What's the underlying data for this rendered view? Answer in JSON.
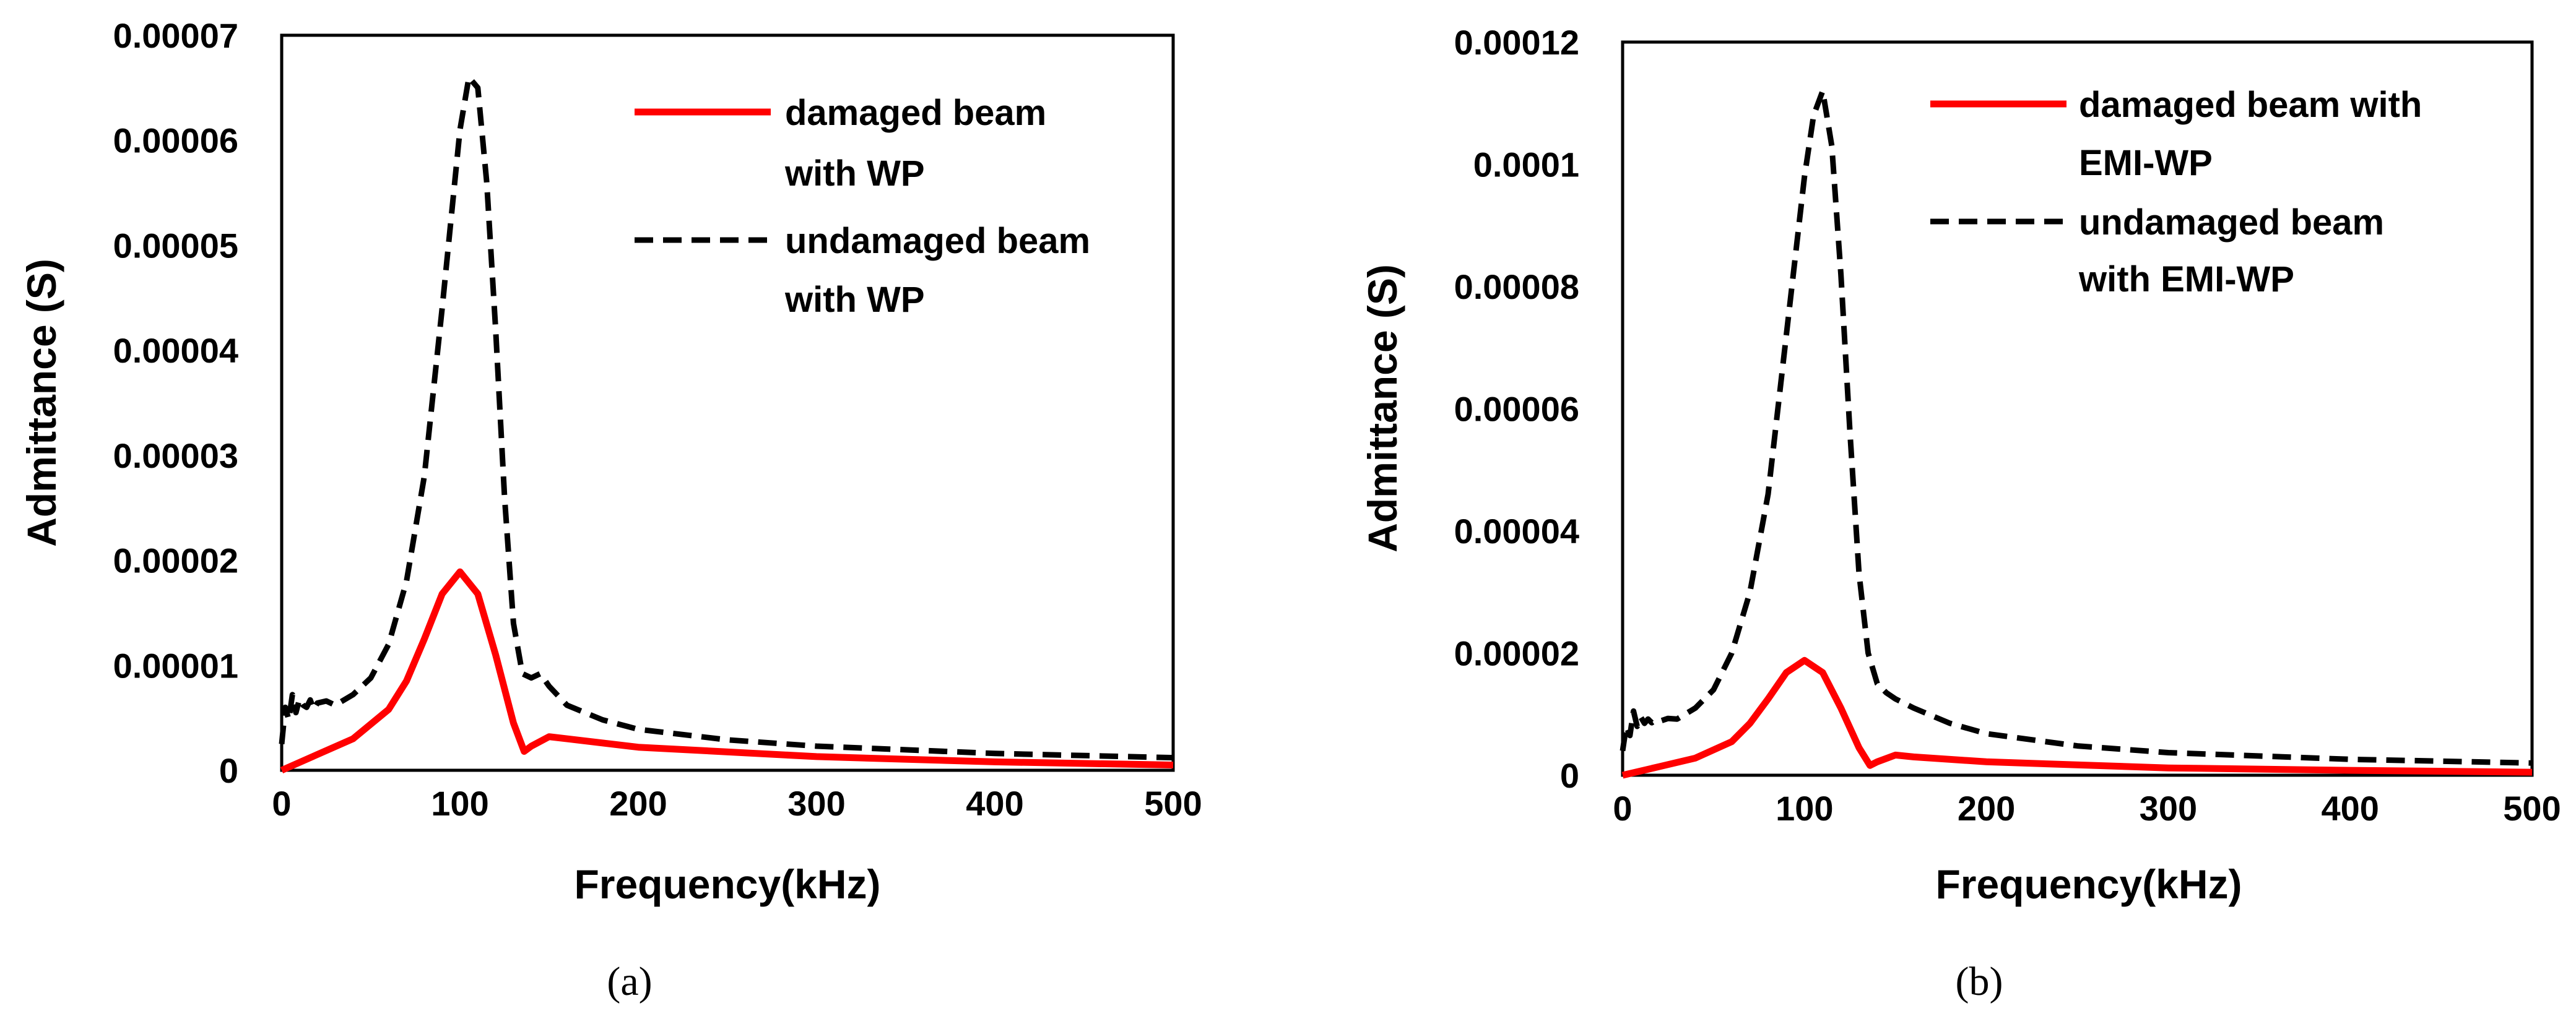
{
  "chart_data": [
    {
      "type": "line",
      "panel_label": "(a)",
      "xlabel": "Frequency(kHz)",
      "ylabel": "Admittance (S)",
      "xlim": [
        0,
        500
      ],
      "ylim": [
        0,
        7e-05
      ],
      "x_ticks": [
        0,
        100,
        200,
        300,
        400,
        500
      ],
      "x_tick_labels": [
        "0",
        "100",
        "200",
        "300",
        "400",
        "500"
      ],
      "y_ticks": [
        0,
        1e-05,
        2e-05,
        3e-05,
        4e-05,
        5e-05,
        6e-05,
        7e-05
      ],
      "y_tick_labels": [
        "0",
        "0.00001",
        "0.00002",
        "0.00003",
        "0.00004",
        "0.00005",
        "0.00006",
        "0.00007"
      ],
      "grid": false,
      "legend_position": "top-right",
      "series": [
        {
          "name": "damaged beam with WP",
          "legend_lines": [
            "damaged beam",
            "with WP"
          ],
          "color": "#ff0000",
          "style": "solid",
          "x": [
            0,
            20,
            40,
            60,
            70,
            80,
            90,
            100,
            110,
            120,
            130,
            136,
            140,
            150,
            160,
            200,
            300,
            400,
            500
          ],
          "y": [
            0,
            1.5e-06,
            3e-06,
            5.8e-06,
            8.5e-06,
            1.25e-05,
            1.68e-05,
            1.89e-05,
            1.68e-05,
            1.1e-05,
            4.5e-06,
            1.8e-06,
            2.3e-06,
            3.2e-06,
            3e-06,
            2.2e-06,
            1.3e-06,
            8e-07,
            5e-07
          ]
        },
        {
          "name": "undamaged beam with WP",
          "legend_lines": [
            "undamaged beam",
            "with WP"
          ],
          "color": "#000000",
          "style": "dashed",
          "x": [
            0,
            2,
            4,
            6,
            8,
            10,
            12,
            14,
            16,
            18,
            20,
            25,
            30,
            40,
            50,
            60,
            70,
            80,
            90,
            100,
            105,
            110,
            115,
            120,
            125,
            130,
            135,
            140,
            145,
            150,
            160,
            180,
            200,
            250,
            300,
            400,
            500
          ],
          "y": [
            2.5e-06,
            6e-06,
            4.8e-06,
            7.2e-06,
            5.5e-06,
            6.8e-06,
            6.2e-06,
            6e-06,
            6.7e-06,
            5.8e-06,
            6.4e-06,
            6.6e-06,
            6.2e-06,
            7.2e-06,
            8.8e-06,
            1.2e-05,
            1.8e-05,
            2.8e-05,
            4.4e-05,
            6.1e-05,
            6.6e-05,
            6.5e-05,
            5.6e-05,
            4.2e-05,
            2.6e-05,
            1.4e-05,
            9.2e-06,
            8.8e-06,
            9.2e-06,
            8e-06,
            6.2e-06,
            4.8e-06,
            3.9e-06,
            2.9e-06,
            2.3e-06,
            1.6e-06,
            1.2e-06
          ]
        }
      ]
    },
    {
      "type": "line",
      "panel_label": "(b)",
      "xlabel": "Frequency(kHz)",
      "ylabel": "Admittance (S)",
      "xlim": [
        0,
        500
      ],
      "ylim": [
        0,
        0.00012
      ],
      "x_ticks": [
        0,
        100,
        200,
        300,
        400,
        500
      ],
      "x_tick_labels": [
        "0",
        "100",
        "200",
        "300",
        "400",
        "500"
      ],
      "y_ticks": [
        0,
        2e-05,
        4e-05,
        6e-05,
        8e-05,
        0.0001,
        0.00012
      ],
      "y_tick_labels": [
        "0",
        "0.00002",
        "0.00004",
        "0.00006",
        "0.00008",
        "0.0001",
        "0.00012"
      ],
      "grid": false,
      "legend_position": "top-right",
      "series": [
        {
          "name": "damaged beam with EMI-WP",
          "legend_lines": [
            "damaged beam with",
            "EMI-WP"
          ],
          "color": "#ff0000",
          "style": "solid",
          "x": [
            0,
            20,
            40,
            60,
            70,
            80,
            90,
            100,
            110,
            120,
            130,
            136,
            140,
            150,
            160,
            200,
            300,
            400,
            500
          ],
          "y": [
            0,
            1.4e-06,
            2.8e-06,
            5.5e-06,
            8.5e-06,
            1.25e-05,
            1.68e-05,
            1.88e-05,
            1.68e-05,
            1.1e-05,
            4.5e-06,
            1.6e-06,
            2.2e-06,
            3.3e-06,
            3e-06,
            2.2e-06,
            1.2e-06,
            8e-07,
            5e-07
          ]
        },
        {
          "name": "undamaged beam with EMI-WP",
          "legend_lines": [
            "undamaged beam",
            "with EMI-WP"
          ],
          "color": "#000000",
          "style": "dashed",
          "x": [
            0,
            2,
            4,
            6,
            8,
            10,
            12,
            14,
            16,
            18,
            20,
            25,
            30,
            40,
            50,
            60,
            70,
            80,
            90,
            100,
            105,
            110,
            115,
            120,
            125,
            130,
            135,
            140,
            145,
            150,
            160,
            180,
            200,
            250,
            300,
            400,
            500
          ],
          "y": [
            4e-06,
            8e-06,
            6.5e-06,
            1.05e-05,
            8e-06,
            9.5e-06,
            8.5e-06,
            9.2e-06,
            8.6e-06,
            9e-06,
            8.8e-06,
            9.3e-06,
            9.2e-06,
            1.1e-05,
            1.4e-05,
            2e-05,
            3e-05,
            4.6e-05,
            7.2e-05,
            9.8e-05,
            0.000108,
            0.000112,
            0.000103,
            8.2e-05,
            5.6e-05,
            3.3e-05,
            2e-05,
            1.5e-05,
            1.35e-05,
            1.25e-05,
            1.1e-05,
            8.5e-06,
            6.8e-06,
            4.8e-06,
            3.7e-06,
            2.6e-06,
            2e-06
          ]
        }
      ]
    }
  ]
}
